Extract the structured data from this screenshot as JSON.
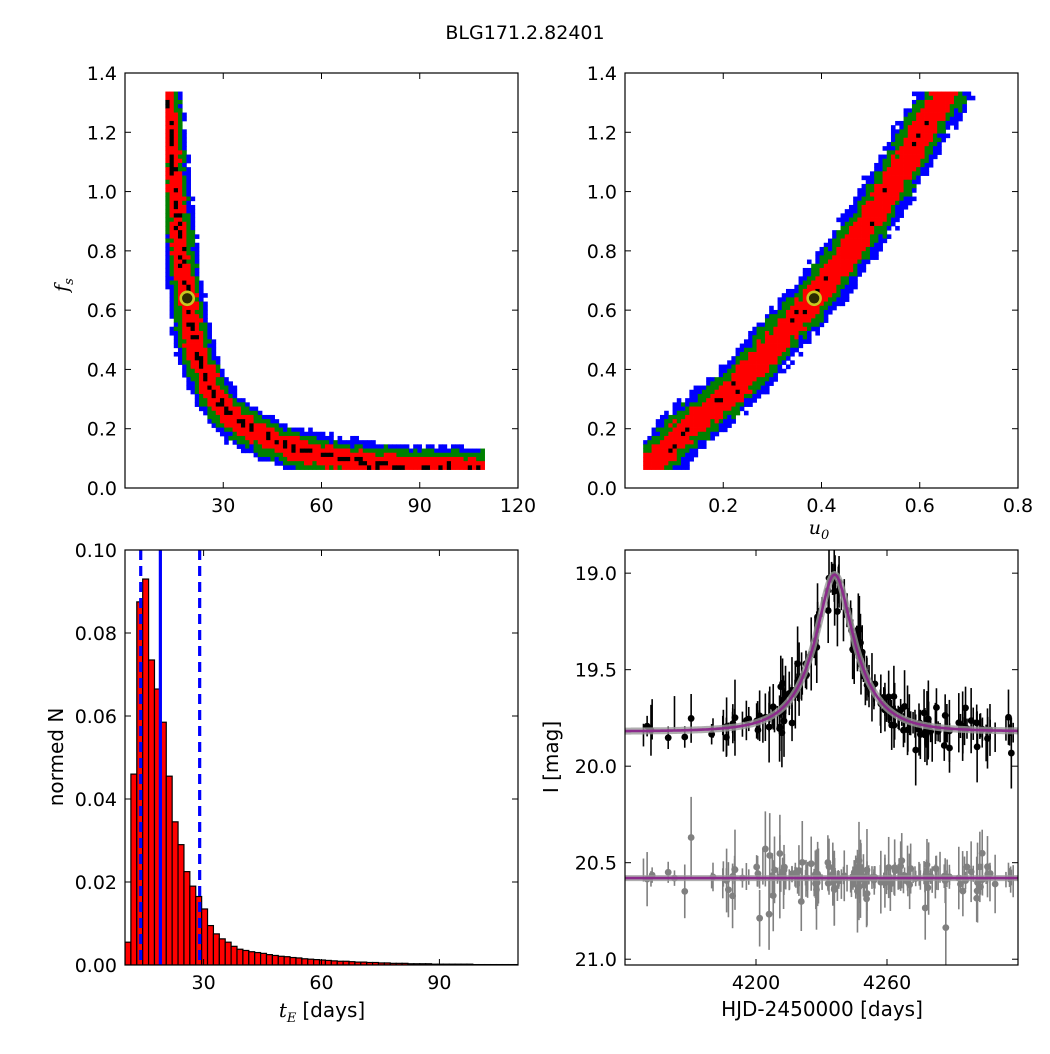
{
  "figure": {
    "title": "BLG171.2.82401"
  },
  "chart_data": [
    {
      "id": "tE-fs",
      "type": "heatmap",
      "title": "",
      "xlabel": "",
      "ylabel": "f",
      "ylabel_sub": "s",
      "xlim": [
        0,
        120
      ],
      "ylim": [
        0,
        1.4
      ],
      "xticks": [
        "30",
        "60",
        "90",
        "120"
      ],
      "xtick_values": [
        30,
        60,
        90,
        120
      ],
      "yticks": [
        "0.0",
        "0.2",
        "0.4",
        "0.6",
        "0.8",
        "1.0",
        "1.2",
        "1.4"
      ],
      "ytick_values": [
        0,
        0.2,
        0.4,
        0.6,
        0.8,
        1.0,
        1.2,
        1.4
      ],
      "levels": [
        {
          "name": "1-sigma",
          "color": "#000000"
        },
        {
          "name": "2-sigma",
          "color": "#ff0000"
        },
        {
          "name": "3-sigma",
          "color": "#008000"
        },
        {
          "name": "outer",
          "color": "#0000ff"
        }
      ],
      "best_fit": {
        "x": 19,
        "y": 0.64
      },
      "ridge": [
        [
          13,
          1.33
        ],
        [
          14,
          1.2
        ],
        [
          15,
          1.05
        ],
        [
          16,
          0.92
        ],
        [
          17,
          0.8
        ],
        [
          18,
          0.7
        ],
        [
          19,
          0.64
        ],
        [
          20,
          0.56
        ],
        [
          21,
          0.5
        ],
        [
          22,
          0.45
        ],
        [
          24,
          0.4
        ],
        [
          26,
          0.34
        ],
        [
          28,
          0.3
        ],
        [
          31,
          0.26
        ],
        [
          35,
          0.22
        ],
        [
          40,
          0.19
        ],
        [
          45,
          0.16
        ],
        [
          52,
          0.13
        ],
        [
          60,
          0.11
        ],
        [
          70,
          0.09
        ],
        [
          80,
          0.08
        ],
        [
          92,
          0.07
        ],
        [
          109,
          0.065
        ]
      ]
    },
    {
      "id": "u0-fs",
      "type": "heatmap",
      "title": "",
      "xlabel": "u",
      "xlabel_sub": "0",
      "ylabel": "",
      "xlim": [
        0,
        0.8
      ],
      "ylim": [
        0,
        1.4
      ],
      "xticks": [
        "0.2",
        "0.4",
        "0.6",
        "0.8"
      ],
      "xtick_values": [
        0.2,
        0.4,
        0.6,
        0.8
      ],
      "yticks": [
        "0.0",
        "0.2",
        "0.4",
        "0.6",
        "0.8",
        "1.0",
        "1.2",
        "1.4"
      ],
      "ytick_values": [
        0,
        0.2,
        0.4,
        0.6,
        0.8,
        1.0,
        1.2,
        1.4
      ],
      "levels": [
        {
          "name": "1-sigma",
          "color": "#000000"
        },
        {
          "name": "2-sigma",
          "color": "#ff0000"
        },
        {
          "name": "3-sigma",
          "color": "#008000"
        },
        {
          "name": "outer",
          "color": "#0000ff"
        }
      ],
      "best_fit": {
        "x": 0.385,
        "y": 0.64
      },
      "ridge": [
        [
          0.05,
          0.07
        ],
        [
          0.08,
          0.12
        ],
        [
          0.12,
          0.19
        ],
        [
          0.17,
          0.26
        ],
        [
          0.22,
          0.33
        ],
        [
          0.27,
          0.42
        ],
        [
          0.32,
          0.52
        ],
        [
          0.385,
          0.64
        ],
        [
          0.44,
          0.76
        ],
        [
          0.49,
          0.88
        ],
        [
          0.53,
          0.99
        ],
        [
          0.57,
          1.1
        ],
        [
          0.61,
          1.22
        ],
        [
          0.655,
          1.33
        ]
      ]
    },
    {
      "id": "tE-hist",
      "type": "bar",
      "title": "",
      "xlabel": "t",
      "xlabel_sub": "E",
      "xlabel_unit": "[days]",
      "ylabel": "normed N",
      "xlim": [
        10,
        110
      ],
      "ylim": [
        0,
        0.1
      ],
      "xticks": [
        "30",
        "60",
        "90"
      ],
      "xtick_values": [
        30,
        60,
        90
      ],
      "yticks": [
        "0.00",
        "0.02",
        "0.04",
        "0.06",
        "0.08",
        "0.10"
      ],
      "ytick_values": [
        0,
        0.02,
        0.04,
        0.06,
        0.08,
        0.1
      ],
      "bar_color": "#ff0000",
      "bin_start": 10,
      "bin_width": 1.5,
      "values": [
        0.0055,
        0.046,
        0.0875,
        0.093,
        0.0735,
        0.0665,
        0.0585,
        0.0455,
        0.0345,
        0.029,
        0.0225,
        0.019,
        0.0165,
        0.0135,
        0.0095,
        0.0075,
        0.0063,
        0.0055,
        0.0045,
        0.0038,
        0.0035,
        0.0032,
        0.003,
        0.0028,
        0.0025,
        0.0023,
        0.0021,
        0.002,
        0.0018,
        0.0017,
        0.0015,
        0.0014,
        0.0013,
        0.0012,
        0.0011,
        0.001,
        0.0009,
        0.0009,
        0.0008,
        0.0007,
        0.0007,
        0.0006,
        0.0006,
        0.0005,
        0.0005,
        0.0004,
        0.0004,
        0.0004,
        0.0003,
        0.0003,
        0.0003,
        0.0003,
        0.0002,
        0.0002,
        0.0002,
        0.0002,
        0.0002,
        0.0002,
        0.0002,
        0.0001,
        0.0001,
        0.0001,
        0.0001,
        0.0001,
        0.0001,
        0.0001,
        0.0001
      ],
      "vlines": [
        {
          "x": 19,
          "style": "solid",
          "color": "#0000ff"
        },
        {
          "x": 14,
          "style": "dashed",
          "color": "#0000ff"
        },
        {
          "x": 29,
          "style": "dashed",
          "color": "#0000ff"
        }
      ]
    },
    {
      "id": "lightcurve",
      "type": "scatter",
      "title": "",
      "xlabel": "HJD-2450000 [days]",
      "ylabel": "I [mag]",
      "xlim": [
        4140,
        4320
      ],
      "ylim": [
        21.03,
        18.88
      ],
      "xticks": [
        "4200",
        "4260"
      ],
      "xtick_values": [
        4200,
        4260
      ],
      "yticks": [
        "19.0",
        "19.5",
        "20.0",
        "20.5",
        "21.0"
      ],
      "ytick_values": [
        19.0,
        19.5,
        20.0,
        20.5,
        21.0
      ],
      "model": {
        "baseline": 19.82,
        "t0": 4236,
        "u0": 0.385,
        "tE": 19,
        "fs": 0.64,
        "color": "#8b2b8b"
      },
      "residual_offset": 20.58,
      "series": [
        {
          "name": "data",
          "color": "#000000"
        },
        {
          "name": "residuals",
          "color": "#808080"
        }
      ]
    }
  ]
}
